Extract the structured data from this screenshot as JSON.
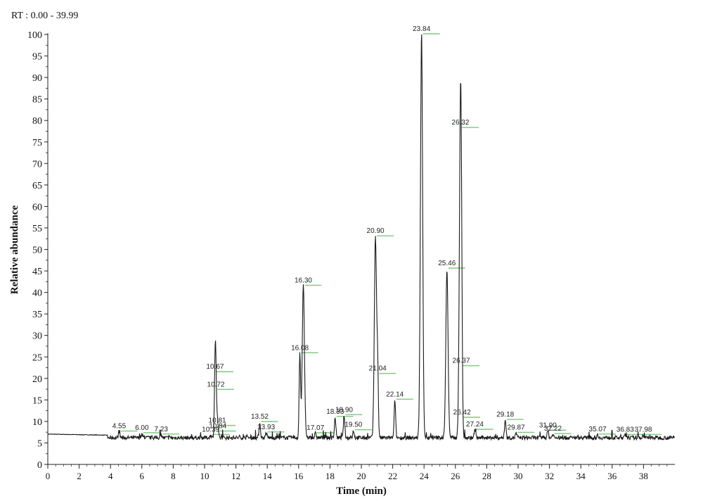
{
  "header": {
    "rt_range": "RT : 0.00 - 39.99"
  },
  "colors": {
    "trace": "#1a1a1a",
    "marker": "#7ec87e",
    "axis": "#222222"
  },
  "chart_data": {
    "type": "line",
    "xlabel": "Time (min)",
    "ylabel": "Relative abundance",
    "xlim": [
      0,
      40
    ],
    "ylim": [
      0,
      100
    ],
    "xticks": [
      0,
      2,
      4,
      6,
      8,
      10,
      12,
      14,
      16,
      18,
      20,
      22,
      24,
      26,
      28,
      30,
      32,
      34,
      36,
      38
    ],
    "yticks": [
      0,
      5,
      10,
      15,
      20,
      25,
      30,
      35,
      40,
      45,
      50,
      55,
      60,
      65,
      70,
      75,
      80,
      85,
      90,
      95,
      100
    ],
    "baseline": 6.2,
    "peaks": [
      {
        "x": 4.55,
        "y": 7.6,
        "label": "4.55"
      },
      {
        "x": 6.0,
        "y": 7.2,
        "label": "6.00"
      },
      {
        "x": 7.23,
        "y": 6.9,
        "label": "7.23"
      },
      {
        "x": 10.39,
        "y": 6.8,
        "label": "10.39"
      },
      {
        "x": 10.67,
        "y": 21.4,
        "label": "10.67"
      },
      {
        "x": 10.72,
        "y": 17.3,
        "label": "10.72"
      },
      {
        "x": 10.81,
        "y": 8.9,
        "label": "10.81"
      },
      {
        "x": 10.84,
        "y": 7.6,
        "label": "10.84"
      },
      {
        "x": 13.52,
        "y": 9.8,
        "label": "13.52"
      },
      {
        "x": 13.93,
        "y": 7.4,
        "label": "13.93"
      },
      {
        "x": 16.08,
        "y": 25.8,
        "label": "16.08"
      },
      {
        "x": 16.3,
        "y": 41.5,
        "label": "16.30"
      },
      {
        "x": 17.07,
        "y": 7.2,
        "label": "17.07"
      },
      {
        "x": 18.33,
        "y": 11.0,
        "label": "18.33"
      },
      {
        "x": 18.9,
        "y": 11.4,
        "label": "18.90"
      },
      {
        "x": 19.5,
        "y": 7.9,
        "label": "19.50"
      },
      {
        "x": 20.9,
        "y": 53.0,
        "label": "20.90"
      },
      {
        "x": 21.04,
        "y": 21.0,
        "label": "21.04"
      },
      {
        "x": 22.14,
        "y": 15.0,
        "label": "22.14"
      },
      {
        "x": 23.84,
        "y": 100.0,
        "label": "23.84"
      },
      {
        "x": 25.46,
        "y": 45.5,
        "label": "25.46"
      },
      {
        "x": 26.32,
        "y": 78.2,
        "label": "26.32"
      },
      {
        "x": 26.37,
        "y": 22.8,
        "label": "26.37"
      },
      {
        "x": 26.42,
        "y": 10.8,
        "label": "26.42"
      },
      {
        "x": 27.24,
        "y": 8.0,
        "label": "27.24"
      },
      {
        "x": 29.18,
        "y": 10.3,
        "label": "29.18"
      },
      {
        "x": 29.87,
        "y": 7.3,
        "label": "29.87"
      },
      {
        "x": 31.9,
        "y": 7.8,
        "label": "31.90"
      },
      {
        "x": 32.22,
        "y": 7.0,
        "label": "32.22"
      },
      {
        "x": 35.07,
        "y": 6.9,
        "label": "35.07"
      },
      {
        "x": 36.83,
        "y": 6.8,
        "label": "36.83"
      },
      {
        "x": 37.98,
        "y": 6.8,
        "label": "37.98"
      }
    ]
  }
}
